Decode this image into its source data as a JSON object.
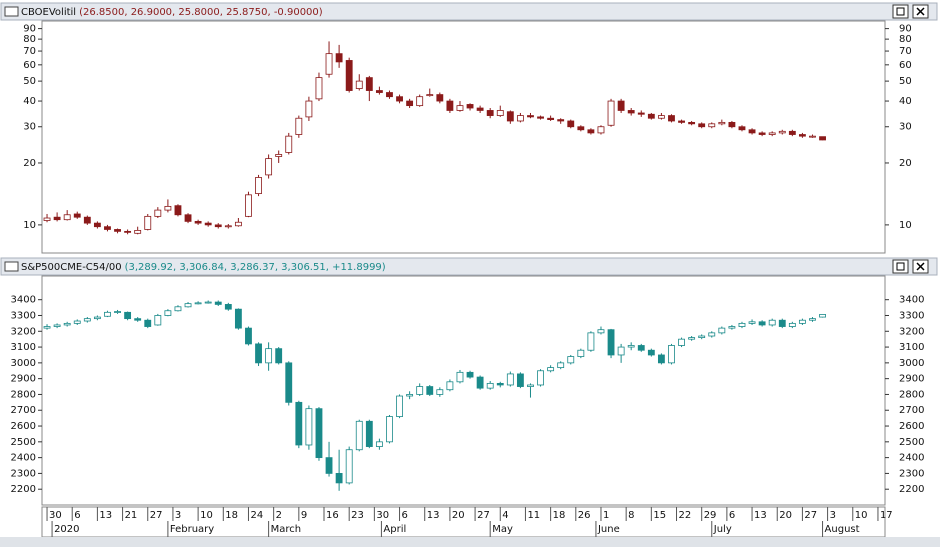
{
  "chart_data": [
    {
      "type": "candlestick",
      "title": "CBOEVolitil",
      "legend_text": "(26.8500, 26.9000, 25.8000, 25.8750, -0.90000)",
      "color": "#8b1a1a",
      "log_scale": true,
      "xlim": [
        -0.5,
        83.2
      ],
      "ylim": [
        7.3,
        98
      ],
      "yticks": [
        10,
        20,
        30,
        40,
        50,
        60,
        70,
        80,
        90
      ],
      "ohlc": [
        [
          10.5,
          11.3,
          10.3,
          10.8
        ],
        [
          10.9,
          11.5,
          10.4,
          10.6
        ],
        [
          10.6,
          11.8,
          10.5,
          11.2
        ],
        [
          11.3,
          11.6,
          10.7,
          10.9
        ],
        [
          10.9,
          11.1,
          10.0,
          10.2
        ],
        [
          10.2,
          10.4,
          9.6,
          9.8
        ],
        [
          9.8,
          10.0,
          9.3,
          9.5
        ],
        [
          9.5,
          9.6,
          9.1,
          9.3
        ],
        [
          9.3,
          9.5,
          9.0,
          9.2
        ],
        [
          9.1,
          9.8,
          9.0,
          9.4
        ],
        [
          9.5,
          11.3,
          9.4,
          11.0
        ],
        [
          11.0,
          12.2,
          10.8,
          11.8
        ],
        [
          11.8,
          13.3,
          11.5,
          12.3
        ],
        [
          12.4,
          12.6,
          11.0,
          11.2
        ],
        [
          11.2,
          11.4,
          10.2,
          10.4
        ],
        [
          10.4,
          10.6,
          10.0,
          10.2
        ],
        [
          10.2,
          10.4,
          9.8,
          10.0
        ],
        [
          10.0,
          10.2,
          9.6,
          9.8
        ],
        [
          9.8,
          10.1,
          9.6,
          9.9
        ],
        [
          9.9,
          10.8,
          9.8,
          10.3
        ],
        [
          11.0,
          14.5,
          10.9,
          14.0
        ],
        [
          14.2,
          17.5,
          13.8,
          17.0
        ],
        [
          17.5,
          22.0,
          16.8,
          21.0
        ],
        [
          21.5,
          23.0,
          20.0,
          22.0
        ],
        [
          22.5,
          28.0,
          22.0,
          27.0
        ],
        [
          27.5,
          34.0,
          26.5,
          33.0
        ],
        [
          33.5,
          42.0,
          32.0,
          40.0
        ],
        [
          41.0,
          55.0,
          40.0,
          52.0
        ],
        [
          54.0,
          78.0,
          52.0,
          68.0
        ],
        [
          68.0,
          75.0,
          58.0,
          62.0
        ],
        [
          63.0,
          65.0,
          44.0,
          45.0
        ],
        [
          46.0,
          54.0,
          45.0,
          50.0
        ],
        [
          52.0,
          53.0,
          40.0,
          45.0
        ],
        [
          45.0,
          47.0,
          43.0,
          44.0
        ],
        [
          44.0,
          45.0,
          41.0,
          42.0
        ],
        [
          42.0,
          43.0,
          39.0,
          40.0
        ],
        [
          40.0,
          41.0,
          37.0,
          38.0
        ],
        [
          38.0,
          43.0,
          37.5,
          42.0
        ],
        [
          42.5,
          46.0,
          42.0,
          43.0
        ],
        [
          43.0,
          44.0,
          39.0,
          40.0
        ],
        [
          40.0,
          41.0,
          35.0,
          36.0
        ],
        [
          36.0,
          40.0,
          35.5,
          38.0
        ],
        [
          38.5,
          39.0,
          36.0,
          37.0
        ],
        [
          37.0,
          38.0,
          35.0,
          36.0
        ],
        [
          36.0,
          37.0,
          33.0,
          34.0
        ],
        [
          34.0,
          38.0,
          33.5,
          36.0
        ],
        [
          35.5,
          36.0,
          31.0,
          32.0
        ],
        [
          32.0,
          35.0,
          31.5,
          34.0
        ],
        [
          34.0,
          35.0,
          33.0,
          33.5
        ],
        [
          33.5,
          34.0,
          32.5,
          33.0
        ],
        [
          33.0,
          34.0,
          32.0,
          32.5
        ],
        [
          32.5,
          33.0,
          31.0,
          32.0
        ],
        [
          32.0,
          32.5,
          29.5,
          30.0
        ],
        [
          30.0,
          30.5,
          28.5,
          29.0
        ],
        [
          29.0,
          29.5,
          27.5,
          28.0
        ],
        [
          28.0,
          30.5,
          27.5,
          30.0
        ],
        [
          30.5,
          41.0,
          30.0,
          40.0
        ],
        [
          40.0,
          41.0,
          35.0,
          36.0
        ],
        [
          36.0,
          37.0,
          34.0,
          35.0
        ],
        [
          35.0,
          36.0,
          33.5,
          34.5
        ],
        [
          34.5,
          35.0,
          32.5,
          33.0
        ],
        [
          33.0,
          35.0,
          32.5,
          34.0
        ],
        [
          34.0,
          34.5,
          31.5,
          32.0
        ],
        [
          32.0,
          32.5,
          31.0,
          31.5
        ],
        [
          31.5,
          32.0,
          30.5,
          31.0
        ],
        [
          31.0,
          31.5,
          29.5,
          30.0
        ],
        [
          30.0,
          31.5,
          29.5,
          31.0
        ],
        [
          31.0,
          32.5,
          30.5,
          31.5
        ],
        [
          31.5,
          32.0,
          29.5,
          30.0
        ],
        [
          30.0,
          30.5,
          28.5,
          29.0
        ],
        [
          29.0,
          29.5,
          27.5,
          28.0
        ],
        [
          28.0,
          28.5,
          27.0,
          27.5
        ],
        [
          27.5,
          28.5,
          27.0,
          28.0
        ],
        [
          28.0,
          29.0,
          27.5,
          28.5
        ],
        [
          28.5,
          29.0,
          27.0,
          27.5
        ],
        [
          27.5,
          28.0,
          26.5,
          27.0
        ],
        [
          27.0,
          27.5,
          26.5,
          27.0
        ],
        [
          26.85,
          26.9,
          25.8,
          25.875
        ]
      ]
    },
    {
      "type": "candlestick",
      "title": "S&P500CME-C54/00",
      "legend_text": "(3,289.92, 3,306.84, 3,286.37, 3,306.51, +11.8999)",
      "color": "#1a8a8a",
      "log_scale": false,
      "xlim": [
        -0.5,
        83.2
      ],
      "ylim": [
        2100,
        3550
      ],
      "yticks": [
        2200,
        2300,
        2400,
        2500,
        2600,
        2700,
        2800,
        2900,
        3000,
        3100,
        3200,
        3300,
        3400
      ],
      "xticks": [
        {
          "value": 0,
          "label": "30"
        },
        {
          "value": 2.5,
          "label": "6"
        },
        {
          "value": 5,
          "label": "13"
        },
        {
          "value": 7.5,
          "label": "21"
        },
        {
          "value": 10,
          "label": "27"
        },
        {
          "value": 12.5,
          "label": "3"
        },
        {
          "value": 15,
          "label": "10"
        },
        {
          "value": 17.5,
          "label": "18"
        },
        {
          "value": 20,
          "label": "24"
        },
        {
          "value": 22.5,
          "label": "2"
        },
        {
          "value": 25,
          "label": "9"
        },
        {
          "value": 27.5,
          "label": "16"
        },
        {
          "value": 30,
          "label": "23"
        },
        {
          "value": 32.5,
          "label": "30"
        },
        {
          "value": 35,
          "label": "6"
        },
        {
          "value": 37.5,
          "label": "13"
        },
        {
          "value": 40,
          "label": "20"
        },
        {
          "value": 42.5,
          "label": "27"
        },
        {
          "value": 45,
          "label": "4"
        },
        {
          "value": 47.5,
          "label": "11"
        },
        {
          "value": 50,
          "label": "18"
        },
        {
          "value": 52.5,
          "label": "26"
        },
        {
          "value": 55,
          "label": "1"
        },
        {
          "value": 57.5,
          "label": "8"
        },
        {
          "value": 60,
          "label": "15"
        },
        {
          "value": 62.5,
          "label": "22"
        },
        {
          "value": 65,
          "label": "29"
        },
        {
          "value": 67.5,
          "label": "6"
        },
        {
          "value": 70,
          "label": "13"
        },
        {
          "value": 72.5,
          "label": "20"
        },
        {
          "value": 75,
          "label": "27"
        },
        {
          "value": 77.5,
          "label": "3"
        },
        {
          "value": 80,
          "label": "10"
        },
        {
          "value": 82.5,
          "label": "17"
        }
      ],
      "month_labels": [
        {
          "value": 0.5,
          "label": "2020"
        },
        {
          "value": 12,
          "label": "February"
        },
        {
          "value": 22,
          "label": "March"
        },
        {
          "value": 33.2,
          "label": "April"
        },
        {
          "value": 44,
          "label": "May"
        },
        {
          "value": 54.5,
          "label": "June"
        },
        {
          "value": 66,
          "label": "July"
        },
        {
          "value": 77,
          "label": "August"
        }
      ],
      "ohlc": [
        [
          3220,
          3245,
          3210,
          3230
        ],
        [
          3230,
          3250,
          3220,
          3240
        ],
        [
          3240,
          3260,
          3230,
          3250
        ],
        [
          3250,
          3275,
          3240,
          3265
        ],
        [
          3265,
          3290,
          3255,
          3280
        ],
        [
          3280,
          3300,
          3270,
          3290
        ],
        [
          3295,
          3330,
          3290,
          3320
        ],
        [
          3320,
          3335,
          3310,
          3325
        ],
        [
          3320,
          3325,
          3270,
          3280
        ],
        [
          3280,
          3290,
          3260,
          3270
        ],
        [
          3270,
          3280,
          3220,
          3230
        ],
        [
          3240,
          3310,
          3235,
          3300
        ],
        [
          3300,
          3340,
          3295,
          3330
        ],
        [
          3330,
          3365,
          3325,
          3355
        ],
        [
          3355,
          3385,
          3350,
          3375
        ],
        [
          3375,
          3390,
          3370,
          3380
        ],
        [
          3380,
          3395,
          3375,
          3385
        ],
        [
          3385,
          3395,
          3360,
          3370
        ],
        [
          3370,
          3380,
          3330,
          3340
        ],
        [
          3340,
          3345,
          3210,
          3220
        ],
        [
          3220,
          3230,
          3110,
          3120
        ],
        [
          3120,
          3130,
          2980,
          3000
        ],
        [
          3000,
          3130,
          2950,
          3090
        ],
        [
          3090,
          3100,
          2990,
          3000
        ],
        [
          3000,
          3010,
          2730,
          2750
        ],
        [
          2750,
          2760,
          2460,
          2480
        ],
        [
          2480,
          2730,
          2450,
          2710
        ],
        [
          2710,
          2720,
          2380,
          2400
        ],
        [
          2400,
          2500,
          2280,
          2300
        ],
        [
          2300,
          2450,
          2190,
          2240
        ],
        [
          2240,
          2470,
          2230,
          2450
        ],
        [
          2450,
          2640,
          2440,
          2630
        ],
        [
          2630,
          2640,
          2460,
          2470
        ],
        [
          2470,
          2520,
          2450,
          2500
        ],
        [
          2500,
          2670,
          2490,
          2660
        ],
        [
          2660,
          2800,
          2650,
          2790
        ],
        [
          2790,
          2820,
          2770,
          2800
        ],
        [
          2800,
          2870,
          2790,
          2850
        ],
        [
          2850,
          2860,
          2790,
          2800
        ],
        [
          2800,
          2845,
          2785,
          2830
        ],
        [
          2830,
          2895,
          2820,
          2880
        ],
        [
          2880,
          2955,
          2870,
          2940
        ],
        [
          2940,
          2950,
          2900,
          2910
        ],
        [
          2910,
          2920,
          2830,
          2840
        ],
        [
          2840,
          2885,
          2830,
          2870
        ],
        [
          2870,
          2880,
          2845,
          2860
        ],
        [
          2860,
          2945,
          2850,
          2930
        ],
        [
          2930,
          2940,
          2840,
          2850
        ],
        [
          2850,
          2870,
          2780,
          2860
        ],
        [
          2860,
          2960,
          2850,
          2950
        ],
        [
          2950,
          2985,
          2940,
          2970
        ],
        [
          2970,
          3010,
          2960,
          3000
        ],
        [
          3000,
          3050,
          2990,
          3040
        ],
        [
          3040,
          3090,
          3030,
          3080
        ],
        [
          3080,
          3200,
          3070,
          3190
        ],
        [
          3190,
          3230,
          3180,
          3210
        ],
        [
          3210,
          3215,
          3030,
          3050
        ],
        [
          3050,
          3120,
          3000,
          3100
        ],
        [
          3100,
          3130,
          3080,
          3110
        ],
        [
          3110,
          3120,
          3070,
          3080
        ],
        [
          3080,
          3090,
          3040,
          3050
        ],
        [
          3050,
          3060,
          2990,
          3000
        ],
        [
          3000,
          3120,
          2990,
          3110
        ],
        [
          3110,
          3160,
          3100,
          3150
        ],
        [
          3150,
          3170,
          3140,
          3160
        ],
        [
          3160,
          3180,
          3150,
          3170
        ],
        [
          3170,
          3200,
          3160,
          3190
        ],
        [
          3190,
          3230,
          3180,
          3220
        ],
        [
          3220,
          3240,
          3210,
          3230
        ],
        [
          3230,
          3260,
          3220,
          3250
        ],
        [
          3250,
          3275,
          3240,
          3260
        ],
        [
          3260,
          3270,
          3230,
          3240
        ],
        [
          3240,
          3280,
          3230,
          3270
        ],
        [
          3270,
          3280,
          3220,
          3230
        ],
        [
          3230,
          3260,
          3220,
          3250
        ],
        [
          3250,
          3280,
          3240,
          3270
        ],
        [
          3270,
          3290,
          3260,
          3280
        ],
        [
          3289.92,
          3306.84,
          3286.37,
          3306.51
        ]
      ]
    }
  ]
}
